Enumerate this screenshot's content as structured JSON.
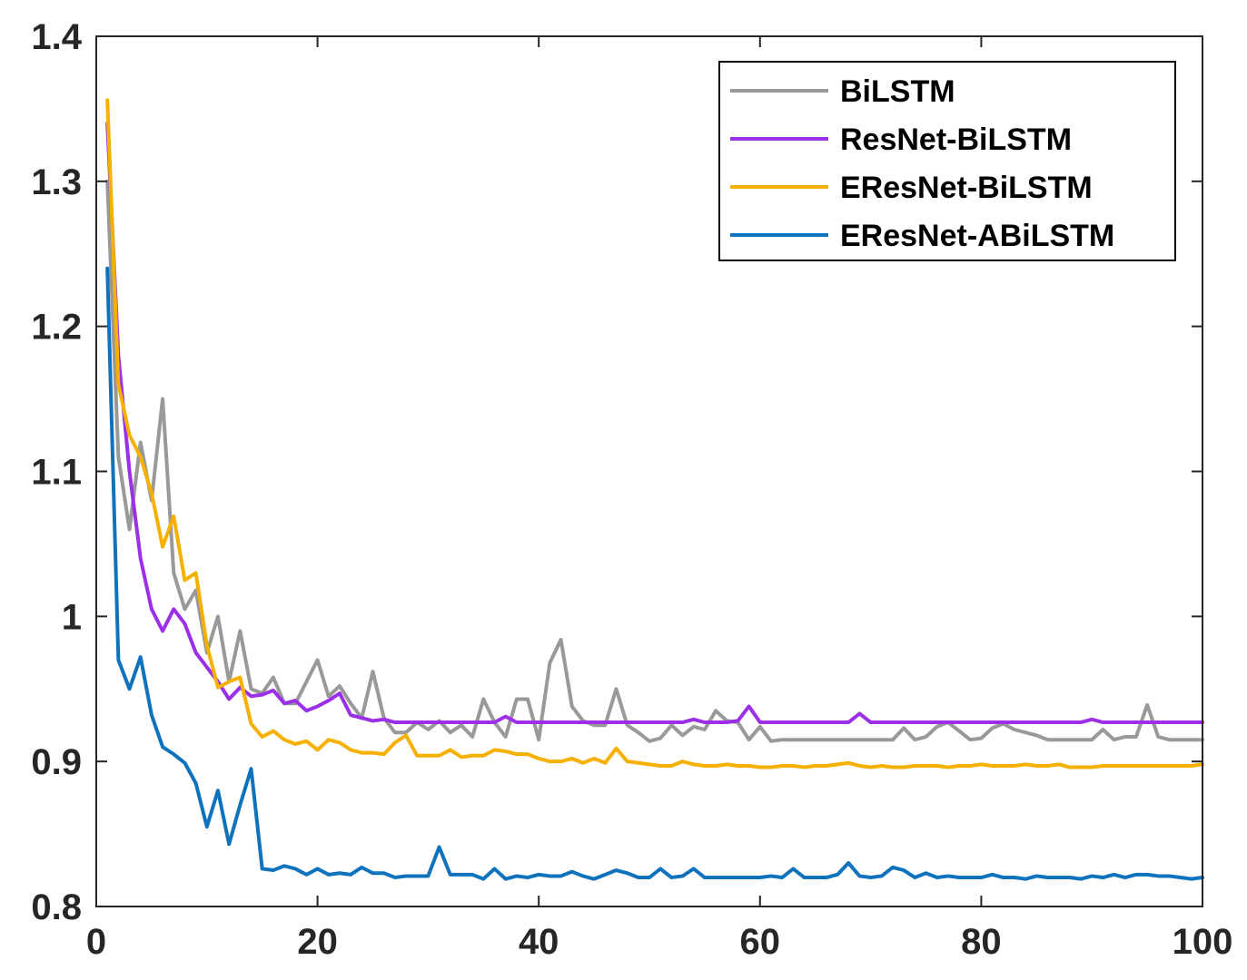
{
  "chart_data": {
    "type": "line",
    "title": "",
    "xlabel": "",
    "ylabel": "",
    "xlim": [
      0,
      100
    ],
    "ylim": [
      0.8,
      1.4
    ],
    "xticks": [
      "0",
      "20",
      "40",
      "60",
      "80",
      "100"
    ],
    "yticks": [
      "0.8",
      "0.9",
      "1",
      "1.1",
      "1.2",
      "1.3",
      "1.4"
    ],
    "grid": false,
    "legend_position": "top-right",
    "series": [
      {
        "name": "BiLSTM",
        "color": "#999999",
        "values": [
          1.3,
          1.11,
          1.06,
          1.12,
          1.08,
          1.15,
          1.03,
          1.005,
          1.018,
          0.975,
          1.0,
          0.955,
          0.99,
          0.95,
          0.947,
          0.958,
          0.94,
          0.94,
          0.955,
          0.97,
          0.945,
          0.952,
          0.94,
          0.93,
          0.962,
          0.93,
          0.92,
          0.92,
          0.927,
          0.922,
          0.928,
          0.92,
          0.925,
          0.917,
          0.943,
          0.927,
          0.917,
          0.943,
          0.943,
          0.915,
          0.968,
          0.984,
          0.938,
          0.928,
          0.925,
          0.925,
          0.95,
          0.925,
          0.92,
          0.914,
          0.916,
          0.925,
          0.918,
          0.924,
          0.922,
          0.935,
          0.928,
          0.927,
          0.915,
          0.924,
          0.914,
          0.915,
          0.915,
          0.915,
          0.915,
          0.915,
          0.915,
          0.915,
          0.915,
          0.915,
          0.915,
          0.915,
          0.923,
          0.915,
          0.917,
          0.924,
          0.927,
          0.921,
          0.915,
          0.916,
          0.923,
          0.926,
          0.922,
          0.92,
          0.918,
          0.915,
          0.915,
          0.915,
          0.915,
          0.915,
          0.922,
          0.915,
          0.917,
          0.917,
          0.939,
          0.917,
          0.915,
          0.915,
          0.915,
          0.915
        ]
      },
      {
        "name": "ResNet-BiLSTM",
        "color": "#9b30e8",
        "values": [
          1.34,
          1.18,
          1.1,
          1.04,
          1.005,
          0.99,
          1.005,
          0.995,
          0.975,
          0.965,
          0.955,
          0.943,
          0.951,
          0.945,
          0.946,
          0.949,
          0.94,
          0.942,
          0.935,
          0.938,
          0.942,
          0.947,
          0.932,
          0.93,
          0.928,
          0.929,
          0.927,
          0.927,
          0.927,
          0.927,
          0.927,
          0.927,
          0.927,
          0.927,
          0.927,
          0.927,
          0.931,
          0.927,
          0.927,
          0.927,
          0.927,
          0.927,
          0.927,
          0.927,
          0.927,
          0.927,
          0.927,
          0.927,
          0.927,
          0.927,
          0.927,
          0.927,
          0.927,
          0.929,
          0.927,
          0.927,
          0.927,
          0.928,
          0.938,
          0.927,
          0.927,
          0.927,
          0.927,
          0.927,
          0.927,
          0.927,
          0.927,
          0.927,
          0.933,
          0.927,
          0.927,
          0.927,
          0.927,
          0.927,
          0.927,
          0.927,
          0.927,
          0.927,
          0.927,
          0.927,
          0.927,
          0.927,
          0.927,
          0.927,
          0.927,
          0.927,
          0.927,
          0.927,
          0.927,
          0.929,
          0.927,
          0.927,
          0.927,
          0.927,
          0.927,
          0.927,
          0.927,
          0.927,
          0.927,
          0.927
        ]
      },
      {
        "name": "EResNet-BiLSTM",
        "color": "#f5b000",
        "values": [
          1.356,
          1.16,
          1.125,
          1.11,
          1.085,
          1.048,
          1.069,
          1.025,
          1.03,
          0.98,
          0.951,
          0.955,
          0.958,
          0.926,
          0.917,
          0.921,
          0.915,
          0.912,
          0.914,
          0.908,
          0.915,
          0.913,
          0.908,
          0.906,
          0.906,
          0.905,
          0.913,
          0.918,
          0.904,
          0.904,
          0.904,
          0.908,
          0.903,
          0.904,
          0.904,
          0.908,
          0.907,
          0.905,
          0.905,
          0.902,
          0.9,
          0.9,
          0.902,
          0.899,
          0.902,
          0.899,
          0.909,
          0.9,
          0.899,
          0.898,
          0.897,
          0.897,
          0.9,
          0.898,
          0.897,
          0.897,
          0.898,
          0.897,
          0.897,
          0.896,
          0.896,
          0.897,
          0.897,
          0.896,
          0.897,
          0.897,
          0.898,
          0.899,
          0.897,
          0.896,
          0.897,
          0.896,
          0.896,
          0.897,
          0.897,
          0.897,
          0.896,
          0.897,
          0.897,
          0.898,
          0.897,
          0.897,
          0.897,
          0.898,
          0.897,
          0.897,
          0.898,
          0.896,
          0.896,
          0.896,
          0.897,
          0.897,
          0.897,
          0.897,
          0.897,
          0.897,
          0.897,
          0.897,
          0.897,
          0.898
        ]
      },
      {
        "name": "EResNet-ABiLSTM",
        "color": "#0e72bd",
        "values": [
          1.24,
          0.97,
          0.95,
          0.972,
          0.932,
          0.91,
          0.905,
          0.899,
          0.885,
          0.855,
          0.88,
          0.843,
          0.87,
          0.895,
          0.826,
          0.825,
          0.828,
          0.826,
          0.822,
          0.826,
          0.822,
          0.823,
          0.822,
          0.827,
          0.823,
          0.823,
          0.82,
          0.821,
          0.821,
          0.821,
          0.841,
          0.822,
          0.822,
          0.822,
          0.819,
          0.826,
          0.819,
          0.821,
          0.82,
          0.822,
          0.821,
          0.821,
          0.824,
          0.821,
          0.819,
          0.822,
          0.825,
          0.823,
          0.82,
          0.82,
          0.826,
          0.82,
          0.821,
          0.826,
          0.82,
          0.82,
          0.82,
          0.82,
          0.82,
          0.82,
          0.821,
          0.82,
          0.826,
          0.82,
          0.82,
          0.82,
          0.822,
          0.83,
          0.821,
          0.82,
          0.821,
          0.827,
          0.825,
          0.82,
          0.823,
          0.82,
          0.821,
          0.82,
          0.82,
          0.82,
          0.822,
          0.82,
          0.82,
          0.819,
          0.821,
          0.82,
          0.82,
          0.82,
          0.819,
          0.821,
          0.82,
          0.822,
          0.82,
          0.822,
          0.822,
          0.821,
          0.821,
          0.82,
          0.819,
          0.82
        ]
      }
    ]
  }
}
